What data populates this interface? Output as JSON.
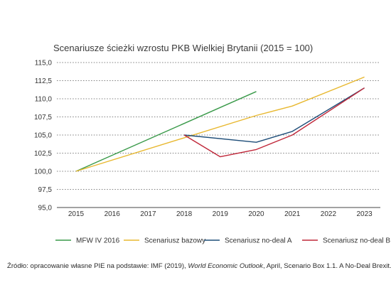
{
  "chart_data": {
    "type": "line",
    "title": "Scenariusze ścieżki wzrostu PKB Wielkiej Brytanii (2015 = 100)",
    "xlabel": "",
    "ylabel": "",
    "x": [
      "2015",
      "2016",
      "2017",
      "2018",
      "2019",
      "2020",
      "2021",
      "2022",
      "2023"
    ],
    "ylim": [
      95,
      115
    ],
    "yticks": [
      "95,0",
      "97,5",
      "100,0",
      "102,5",
      "105,0",
      "107,5",
      "110,0",
      "112,5",
      "115,0"
    ],
    "grid": "horizontal dotted",
    "legend_position": "bottom",
    "series": [
      {
        "name": "MFW IV 2016",
        "color": "#3a9a4a",
        "points": [
          [
            "2015",
            100.0
          ],
          [
            "2020",
            111.0
          ]
        ]
      },
      {
        "name": "Scenariusz bazowy",
        "color": "#e8b830",
        "points": [
          [
            "2015",
            100.0
          ],
          [
            "2020",
            107.7
          ],
          [
            "2021",
            109.0
          ],
          [
            "2023",
            113.0
          ]
        ]
      },
      {
        "name": "Scenariusz no-deal A",
        "color": "#1f4e79",
        "points": [
          [
            "2018",
            105.0
          ],
          [
            "2020",
            104.0
          ],
          [
            "2021",
            105.5
          ],
          [
            "2023",
            111.5
          ]
        ]
      },
      {
        "name": "Scenariusz no-deal B",
        "color": "#c0283a",
        "points": [
          [
            "2018",
            105.0
          ],
          [
            "2019",
            102.0
          ],
          [
            "2020",
            103.0
          ],
          [
            "2021",
            105.0
          ],
          [
            "2023",
            111.5
          ]
        ]
      }
    ]
  },
  "source": {
    "prefix": "Źródło: opracowanie własne PIE na podstawie: IMF (2019), ",
    "publication": "World Economic Outlook",
    "suffix": ", April, Scenario Box 1.1. A No-Deal Brexit."
  }
}
